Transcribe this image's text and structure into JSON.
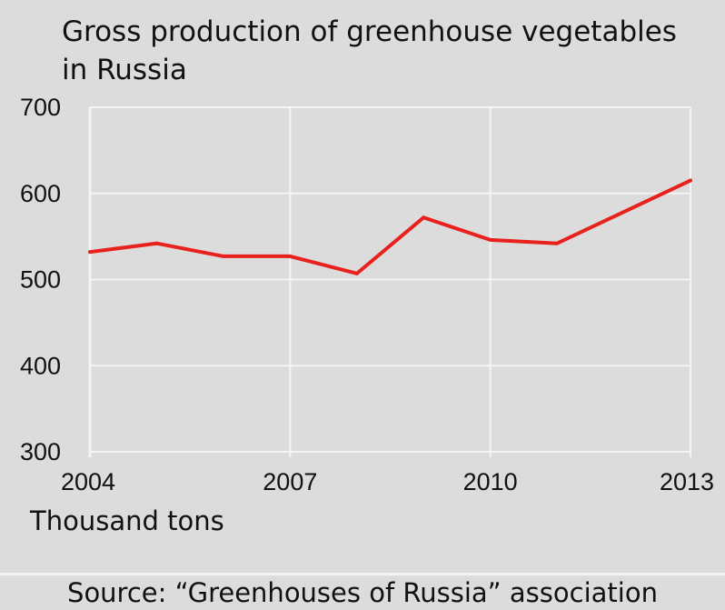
{
  "chart_data": {
    "type": "line",
    "title_lines": [
      "Gross production of greenhouse vegetables",
      "in Russia"
    ],
    "unit_label": "Thousand tons",
    "source": "Source: “Greenhouses of Russia” association",
    "x": [
      2004,
      2005,
      2006,
      2007,
      2008,
      2009,
      2010,
      2011,
      2013
    ],
    "x_ticks": [
      "2004",
      "2007",
      "2010",
      "2013"
    ],
    "x_tick_values": [
      2004,
      2007,
      2010,
      2013
    ],
    "xlim": [
      2004,
      2013
    ],
    "ylim": [
      300,
      700
    ],
    "y_ticks": [
      300,
      400,
      500,
      600,
      700
    ],
    "grid": true,
    "series": [
      {
        "values": [
          532,
          542,
          527,
          527,
          507,
          572,
          546,
          542,
          615
        ],
        "color": "#e8211c"
      }
    ],
    "colors": {
      "background": "#dcdcdc",
      "grid": "#f4f4f4",
      "line": "#e8211c"
    }
  }
}
